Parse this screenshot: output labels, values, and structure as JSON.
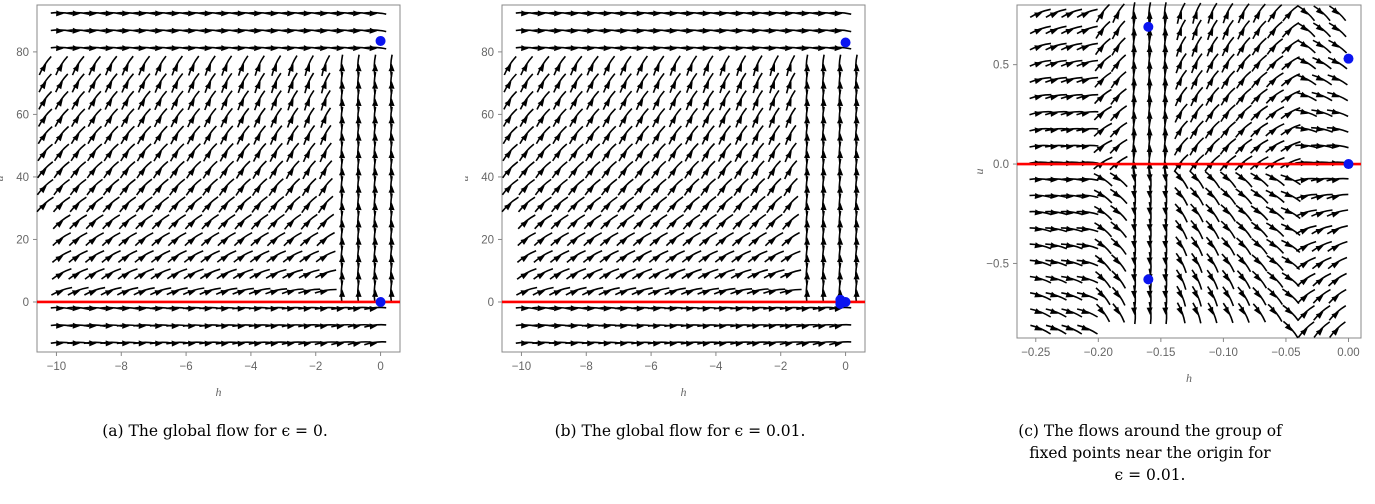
{
  "chart_data": [
    {
      "type": "scatter",
      "subtype": "stream-plot",
      "caption": "(a) The global flow for ϵ = 0.",
      "xlabel": "h",
      "ylabel": "u",
      "xlim": [
        -10.6,
        0.6
      ],
      "ylim": [
        -16,
        95
      ],
      "xticks": [
        "−10",
        "−8",
        "−6",
        "−4",
        "−2",
        "0"
      ],
      "xtick_values": [
        -10,
        -8,
        -6,
        -4,
        -2,
        0
      ],
      "yticks": [
        "0",
        "20",
        "40",
        "60",
        "80"
      ],
      "ytick_values": [
        0,
        20,
        40,
        60,
        80
      ],
      "grid": false,
      "fixed_points": [
        {
          "x": 0,
          "y": 83.5
        },
        {
          "x": 0,
          "y": 0
        }
      ],
      "nullcline_y": 0,
      "colors": {
        "streams": "#000000",
        "points": "#0a14f0",
        "nullcline": "#ff0000"
      }
    },
    {
      "type": "scatter",
      "subtype": "stream-plot",
      "caption": "(b) The global flow for ϵ = 0.01.",
      "xlabel": "h",
      "ylabel": "u",
      "xlim": [
        -10.6,
        0.6
      ],
      "ylim": [
        -16,
        95
      ],
      "xticks": [
        "−10",
        "−8",
        "−6",
        "−4",
        "−2",
        "0"
      ],
      "xtick_values": [
        -10,
        -8,
        -6,
        -4,
        -2,
        0
      ],
      "yticks": [
        "0",
        "20",
        "40",
        "60",
        "80"
      ],
      "ytick_values": [
        0,
        20,
        40,
        60,
        80
      ],
      "grid": false,
      "fixed_points": [
        {
          "x": 0,
          "y": 83
        },
        {
          "x": 0,
          "y": 0
        },
        {
          "x": -0.16,
          "y": 0.7
        },
        {
          "x": -0.16,
          "y": -0.6
        }
      ],
      "nullcline_y": 0,
      "colors": {
        "streams": "#000000",
        "points": "#0a14f0",
        "nullcline": "#ff0000"
      }
    },
    {
      "type": "scatter",
      "subtype": "stream-plot",
      "caption": "(c) The flows around the group of fixed points near the origin for ϵ = 0.01.",
      "caption_lines": [
        "(c) The flows around the group of",
        "fixed points near the origin for",
        "ϵ = 0.01."
      ],
      "xlabel": "h",
      "ylabel": "u",
      "xlim": [
        -0.265,
        0.01
      ],
      "ylim": [
        -0.875,
        0.8
      ],
      "xticks": [
        "−0.25",
        "−0.20",
        "−0.15",
        "−0.10",
        "−0.05",
        "0.00"
      ],
      "xtick_values": [
        -0.25,
        -0.2,
        -0.15,
        -0.1,
        -0.05,
        0
      ],
      "yticks": [
        "−0.5",
        "0.0",
        "0.5"
      ],
      "ytick_values": [
        -0.5,
        0,
        0.5
      ],
      "grid": false,
      "fixed_points": [
        {
          "x": -0.16,
          "y": 0.69
        },
        {
          "x": 0,
          "y": 0.53
        },
        {
          "x": 0,
          "y": 0
        },
        {
          "x": -0.16,
          "y": -0.58
        }
      ],
      "nullcline_y": 0,
      "colors": {
        "streams": "#000000",
        "points": "#0a14f0",
        "nullcline": "#ff0000"
      }
    }
  ]
}
